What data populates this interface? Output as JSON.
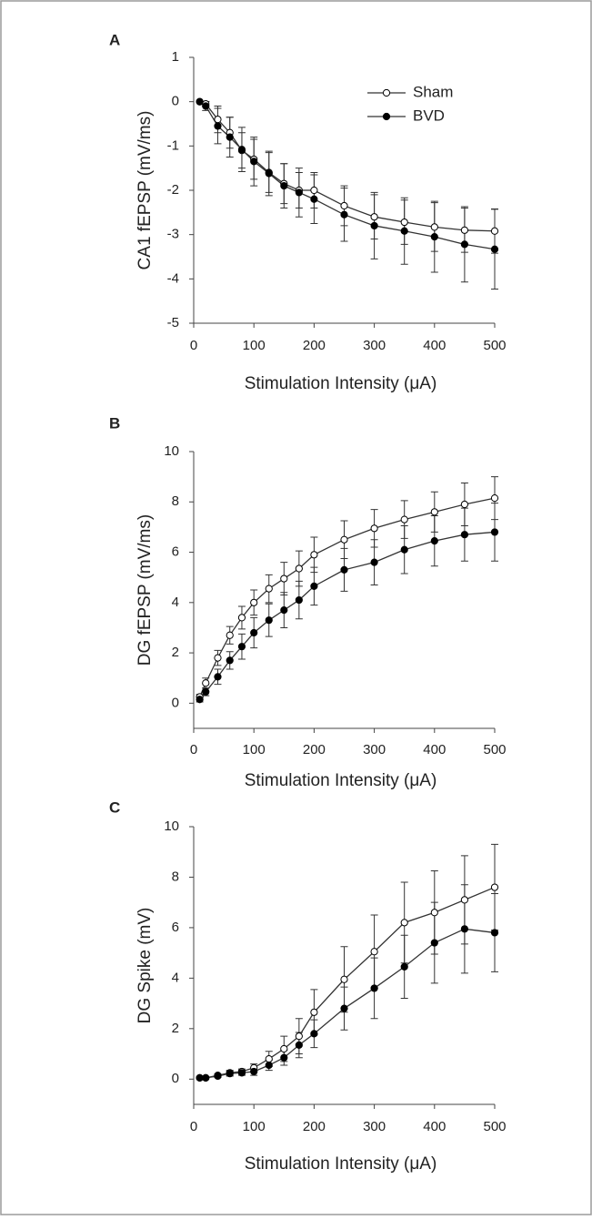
{
  "chart_data": [
    {
      "type": "line",
      "panel_label": "A",
      "x_label": "Stimulation Intensity (μA)",
      "y_label": "CA1 fEPSP (mV/ms)",
      "x": [
        10,
        20,
        40,
        60,
        80,
        100,
        125,
        150,
        175,
        200,
        250,
        300,
        350,
        400,
        450,
        500
      ],
      "xlim": [
        0,
        500
      ],
      "xticks": [
        0,
        100,
        200,
        300,
        400,
        500
      ],
      "ylim": [
        -5,
        1
      ],
      "yticks": [
        -5,
        -4,
        -3,
        -2,
        -1,
        0,
        1
      ],
      "legend": "upper right",
      "series": [
        {
          "name": "Sham",
          "color": "#333333",
          "marker_fill": "#ffffff",
          "values": [
            0,
            -0.05,
            -0.4,
            -0.7,
            -1.1,
            -1.3,
            -1.6,
            -1.85,
            -2.0,
            -2.0,
            -2.35,
            -2.6,
            -2.72,
            -2.83,
            -2.9,
            -2.92
          ],
          "errors": [
            0,
            0.05,
            0.3,
            0.35,
            0.4,
            0.45,
            0.45,
            0.45,
            0.4,
            0.4,
            0.45,
            0.5,
            0.5,
            0.55,
            0.5,
            0.5
          ]
        },
        {
          "name": "BVD",
          "color": "#333333",
          "marker_fill": "#000000",
          "values": [
            0,
            -0.1,
            -0.55,
            -0.8,
            -1.08,
            -1.35,
            -1.62,
            -1.9,
            -2.05,
            -2.2,
            -2.55,
            -2.8,
            -2.92,
            -3.05,
            -3.22,
            -3.33
          ],
          "errors": [
            0,
            0.1,
            0.4,
            0.45,
            0.5,
            0.55,
            0.5,
            0.5,
            0.55,
            0.55,
            0.6,
            0.75,
            0.75,
            0.8,
            0.85,
            0.9
          ]
        }
      ]
    },
    {
      "type": "line",
      "panel_label": "B",
      "x_label": "Stimulation Intensity (μA)",
      "y_label": "DG fEPSP (mV/ms)",
      "x": [
        10,
        20,
        40,
        60,
        80,
        100,
        125,
        150,
        175,
        200,
        250,
        300,
        350,
        400,
        450,
        500
      ],
      "xlim": [
        0,
        500
      ],
      "xticks": [
        0,
        100,
        200,
        300,
        400,
        500
      ],
      "ylim": [
        -1,
        10
      ],
      "yticks": [
        0,
        2,
        4,
        6,
        8,
        10
      ],
      "series": [
        {
          "color": "#333333",
          "marker_fill": "#ffffff",
          "values": [
            0.25,
            0.8,
            1.8,
            2.7,
            3.4,
            4.0,
            4.55,
            4.95,
            5.35,
            5.9,
            6.5,
            6.95,
            7.3,
            7.6,
            7.9,
            8.15
          ],
          "errors": [
            0.1,
            0.2,
            0.3,
            0.35,
            0.45,
            0.5,
            0.55,
            0.65,
            0.7,
            0.7,
            0.75,
            0.75,
            0.75,
            0.8,
            0.85,
            0.85
          ]
        },
        {
          "color": "#333333",
          "marker_fill": "#000000",
          "values": [
            0.15,
            0.45,
            1.05,
            1.7,
            2.25,
            2.8,
            3.3,
            3.7,
            4.1,
            4.65,
            5.3,
            5.6,
            6.1,
            6.45,
            6.7,
            6.8
          ],
          "errors": [
            0.1,
            0.15,
            0.3,
            0.35,
            0.5,
            0.6,
            0.65,
            0.7,
            0.75,
            0.75,
            0.85,
            0.9,
            0.95,
            1.0,
            1.05,
            1.15
          ]
        }
      ]
    },
    {
      "type": "line",
      "panel_label": "C",
      "x_label": "Stimulation Intensity (μA)",
      "y_label": "DG Spike (mV)",
      "x": [
        10,
        20,
        40,
        60,
        80,
        100,
        125,
        150,
        175,
        200,
        250,
        300,
        350,
        400,
        450,
        500
      ],
      "xlim": [
        0,
        500
      ],
      "xticks": [
        0,
        100,
        200,
        300,
        400,
        500
      ],
      "ylim": [
        -1,
        10
      ],
      "yticks": [
        0,
        2,
        4,
        6,
        8,
        10
      ],
      "series": [
        {
          "color": "#333333",
          "marker_fill": "#ffffff",
          "values": [
            0.05,
            0.05,
            0.15,
            0.25,
            0.3,
            0.45,
            0.8,
            1.2,
            1.7,
            2.65,
            3.95,
            5.05,
            6.2,
            6.6,
            7.1,
            7.6
          ],
          "errors": [
            0,
            0,
            0.05,
            0.1,
            0.1,
            0.15,
            0.3,
            0.5,
            0.7,
            0.9,
            1.3,
            1.45,
            1.6,
            1.65,
            1.75,
            1.7
          ]
        },
        {
          "color": "#333333",
          "marker_fill": "#000000",
          "values": [
            0.05,
            0.05,
            0.12,
            0.22,
            0.25,
            0.3,
            0.55,
            0.85,
            1.35,
            1.8,
            2.8,
            3.6,
            4.45,
            5.4,
            5.95,
            5.8
          ],
          "errors": [
            0,
            0,
            0.05,
            0.1,
            0.1,
            0.15,
            0.2,
            0.3,
            0.5,
            0.55,
            0.85,
            1.2,
            1.25,
            1.6,
            1.75,
            1.55
          ]
        }
      ]
    }
  ]
}
